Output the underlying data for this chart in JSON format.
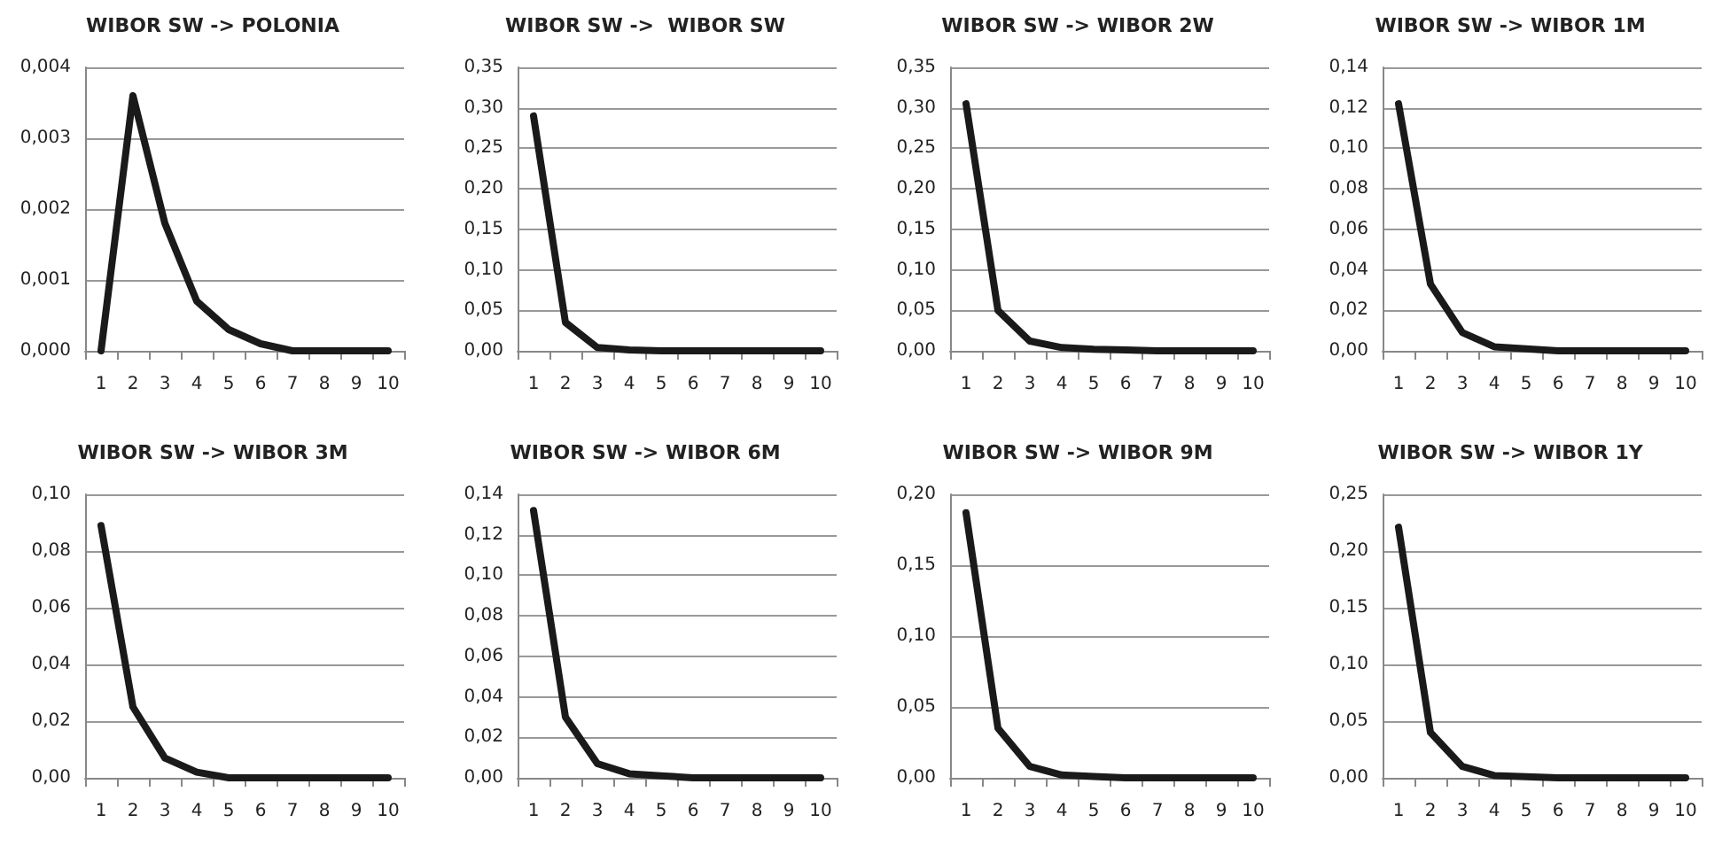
{
  "chart_data": [
    {
      "type": "line",
      "title": "WIBOR SW -> POLONIA",
      "categories": [
        "1",
        "2",
        "3",
        "4",
        "5",
        "6",
        "7",
        "8",
        "9",
        "10"
      ],
      "series": [
        {
          "color": "#1a1a1a",
          "values": [
            0,
            0.0036,
            0.0018,
            0.0007,
            0.0003,
            0.0001,
            0,
            0,
            0,
            0
          ]
        }
      ],
      "ylim": [
        0,
        0.004
      ],
      "yticks": [
        {
          "value": 0,
          "label": "0,000"
        },
        {
          "value": 0.001,
          "label": "0,001"
        },
        {
          "value": 0.002,
          "label": "0,002"
        },
        {
          "value": 0.003,
          "label": "0,003"
        },
        {
          "value": 0.004,
          "label": "0,004"
        }
      ],
      "grid": "y",
      "marker": "none",
      "line_style": "solid"
    },
    {
      "type": "line",
      "title": "WIBOR SW ->  WIBOR SW",
      "categories": [
        "1",
        "2",
        "3",
        "4",
        "5",
        "6",
        "7",
        "8",
        "9",
        "10"
      ],
      "series": [
        {
          "color": "#1a1a1a",
          "values": [
            0.29,
            0.035,
            0.004,
            0.001,
            0,
            0,
            0,
            0,
            0,
            0
          ]
        }
      ],
      "ylim": [
        0,
        0.35
      ],
      "yticks": [
        {
          "value": 0,
          "label": "0,00"
        },
        {
          "value": 0.05,
          "label": "0,05"
        },
        {
          "value": 0.1,
          "label": "0,10"
        },
        {
          "value": 0.15,
          "label": "0,15"
        },
        {
          "value": 0.2,
          "label": "0,20"
        },
        {
          "value": 0.25,
          "label": "0,25"
        },
        {
          "value": 0.3,
          "label": "0,30"
        },
        {
          "value": 0.35,
          "label": "0,35"
        }
      ],
      "grid": "y",
      "marker": "none",
      "line_style": "solid"
    },
    {
      "type": "line",
      "title": "WIBOR SW -> WIBOR 2W",
      "categories": [
        "1",
        "2",
        "3",
        "4",
        "5",
        "6",
        "7",
        "8",
        "9",
        "10"
      ],
      "series": [
        {
          "color": "#1a1a1a",
          "values": [
            0.305,
            0.05,
            0.012,
            0.004,
            0.002,
            0.001,
            0,
            0,
            0,
            0
          ]
        }
      ],
      "ylim": [
        0,
        0.35
      ],
      "yticks": [
        {
          "value": 0,
          "label": "0,00"
        },
        {
          "value": 0.05,
          "label": "0,05"
        },
        {
          "value": 0.1,
          "label": "0,10"
        },
        {
          "value": 0.15,
          "label": "0,15"
        },
        {
          "value": 0.2,
          "label": "0,20"
        },
        {
          "value": 0.25,
          "label": "0,25"
        },
        {
          "value": 0.3,
          "label": "0,30"
        },
        {
          "value": 0.35,
          "label": "0,35"
        }
      ],
      "grid": "y",
      "marker": "none",
      "line_style": "solid"
    },
    {
      "type": "line",
      "title": "WIBOR SW -> WIBOR 1M",
      "categories": [
        "1",
        "2",
        "3",
        "4",
        "5",
        "6",
        "7",
        "8",
        "9",
        "10"
      ],
      "series": [
        {
          "color": "#1a1a1a",
          "values": [
            0.122,
            0.033,
            0.009,
            0.002,
            0.001,
            0,
            0,
            0,
            0,
            0
          ]
        }
      ],
      "ylim": [
        0,
        0.14
      ],
      "yticks": [
        {
          "value": 0,
          "label": "0,00"
        },
        {
          "value": 0.02,
          "label": "0,02"
        },
        {
          "value": 0.04,
          "label": "0,04"
        },
        {
          "value": 0.06,
          "label": "0,06"
        },
        {
          "value": 0.08,
          "label": "0,08"
        },
        {
          "value": 0.1,
          "label": "0,10"
        },
        {
          "value": 0.12,
          "label": "0,12"
        },
        {
          "value": 0.14,
          "label": "0,14"
        }
      ],
      "grid": "y",
      "marker": "none",
      "line_style": "solid"
    },
    {
      "type": "line",
      "title": "WIBOR SW -> WIBOR 3M",
      "categories": [
        "1",
        "2",
        "3",
        "4",
        "5",
        "6",
        "7",
        "8",
        "9",
        "10"
      ],
      "series": [
        {
          "color": "#1a1a1a",
          "values": [
            0.089,
            0.025,
            0.007,
            0.002,
            0,
            0,
            0,
            0,
            0,
            0
          ]
        }
      ],
      "ylim": [
        0,
        0.1
      ],
      "yticks": [
        {
          "value": 0,
          "label": "0,00"
        },
        {
          "value": 0.02,
          "label": "0,02"
        },
        {
          "value": 0.04,
          "label": "0,04"
        },
        {
          "value": 0.06,
          "label": "0,06"
        },
        {
          "value": 0.08,
          "label": "0,08"
        },
        {
          "value": 0.1,
          "label": "0,10"
        }
      ],
      "grid": "y",
      "marker": "none",
      "line_style": "solid"
    },
    {
      "type": "line",
      "title": "WIBOR SW -> WIBOR 6M",
      "categories": [
        "1",
        "2",
        "3",
        "4",
        "5",
        "6",
        "7",
        "8",
        "9",
        "10"
      ],
      "series": [
        {
          "color": "#1a1a1a",
          "values": [
            0.132,
            0.03,
            0.007,
            0.002,
            0.001,
            0,
            0,
            0,
            0,
            0
          ]
        }
      ],
      "ylim": [
        0,
        0.14
      ],
      "yticks": [
        {
          "value": 0,
          "label": "0,00"
        },
        {
          "value": 0.02,
          "label": "0,02"
        },
        {
          "value": 0.04,
          "label": "0,04"
        },
        {
          "value": 0.06,
          "label": "0,06"
        },
        {
          "value": 0.08,
          "label": "0,08"
        },
        {
          "value": 0.1,
          "label": "0,10"
        },
        {
          "value": 0.12,
          "label": "0,12"
        },
        {
          "value": 0.14,
          "label": "0,14"
        }
      ],
      "grid": "y",
      "marker": "none",
      "line_style": "solid"
    },
    {
      "type": "line",
      "title": "WIBOR SW -> WIBOR 9M",
      "categories": [
        "1",
        "2",
        "3",
        "4",
        "5",
        "6",
        "7",
        "8",
        "9",
        "10"
      ],
      "series": [
        {
          "color": "#1a1a1a",
          "values": [
            0.187,
            0.035,
            0.008,
            0.002,
            0.001,
            0,
            0,
            0,
            0,
            0
          ]
        }
      ],
      "ylim": [
        0,
        0.2
      ],
      "yticks": [
        {
          "value": 0,
          "label": "0,00"
        },
        {
          "value": 0.05,
          "label": "0,05"
        },
        {
          "value": 0.1,
          "label": "0,10"
        },
        {
          "value": 0.15,
          "label": "0,15"
        },
        {
          "value": 0.2,
          "label": "0,20"
        }
      ],
      "grid": "y",
      "marker": "none",
      "line_style": "solid"
    },
    {
      "type": "line",
      "title": "WIBOR SW -> WIBOR 1Y",
      "categories": [
        "1",
        "2",
        "3",
        "4",
        "5",
        "6",
        "7",
        "8",
        "9",
        "10"
      ],
      "series": [
        {
          "color": "#1a1a1a",
          "values": [
            0.221,
            0.04,
            0.01,
            0.002,
            0.001,
            0,
            0,
            0,
            0,
            0
          ]
        }
      ],
      "ylim": [
        0,
        0.25
      ],
      "yticks": [
        {
          "value": 0,
          "label": "0,00"
        },
        {
          "value": 0.05,
          "label": "0,05"
        },
        {
          "value": 0.1,
          "label": "0,10"
        },
        {
          "value": 0.15,
          "label": "0,15"
        },
        {
          "value": 0.2,
          "label": "0,20"
        },
        {
          "value": 0.25,
          "label": "0,25"
        }
      ],
      "grid": "y",
      "marker": "none",
      "line_style": "solid"
    }
  ]
}
